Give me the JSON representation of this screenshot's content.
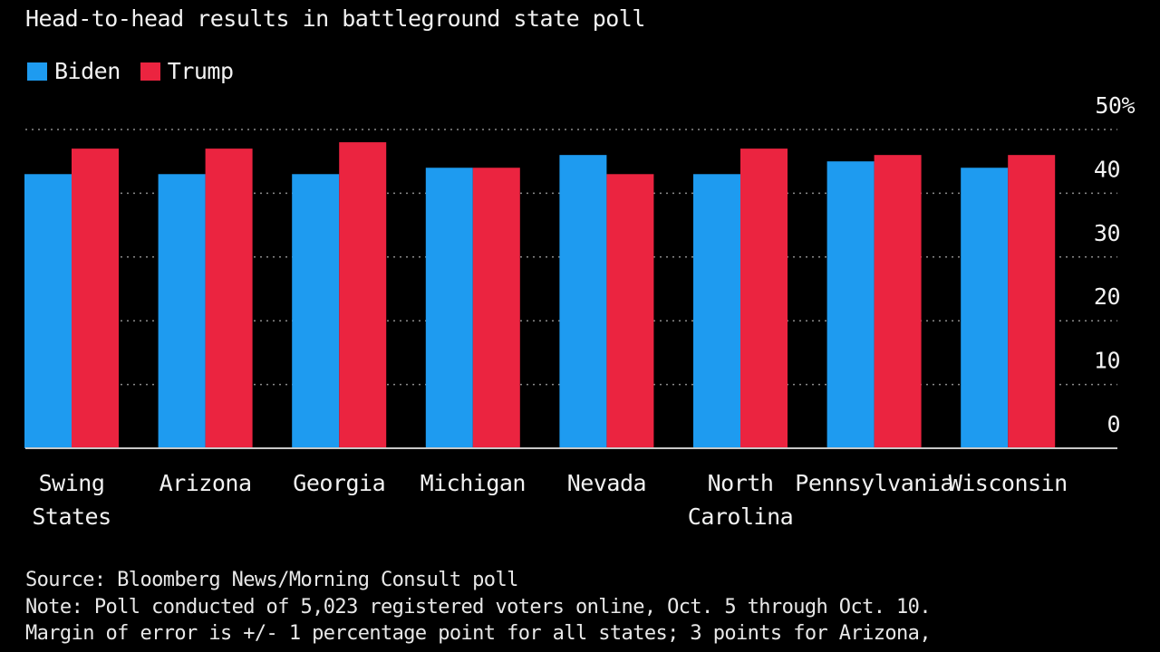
{
  "subtitle": "Head-to-head results in battleground state poll",
  "legend": [
    {
      "name": "Biden",
      "color": "#1e9bf0"
    },
    {
      "name": "Trump",
      "color": "#eb2440"
    }
  ],
  "chart_data": {
    "type": "bar",
    "categories": [
      [
        "Swing",
        "States"
      ],
      [
        "Arizona"
      ],
      [
        "Georgia"
      ],
      [
        "Michigan"
      ],
      [
        "Nevada"
      ],
      [
        "North",
        "Carolina"
      ],
      [
        "Pennsylvania"
      ],
      [
        "Wisconsin"
      ]
    ],
    "series": [
      {
        "name": "Biden",
        "color": "#1e9bf0",
        "values": [
          43,
          43,
          43,
          44,
          46,
          43,
          45,
          44
        ]
      },
      {
        "name": "Trump",
        "color": "#eb2440",
        "values": [
          47,
          47,
          48,
          44,
          43,
          47,
          46,
          46
        ]
      }
    ],
    "yticks": [
      "50%",
      "40",
      "30",
      "20",
      "10",
      "0"
    ],
    "ylim": [
      0,
      50
    ],
    "grid": true
  },
  "footer": {
    "source": "Source: Bloomberg News/Morning Consult poll",
    "note": "Note: Poll conducted of 5,023 registered voters online, Oct. 5 through Oct. 10.",
    "margin": "Margin of error is +/- 1 percentage point for all states; 3 points for Arizona,"
  }
}
